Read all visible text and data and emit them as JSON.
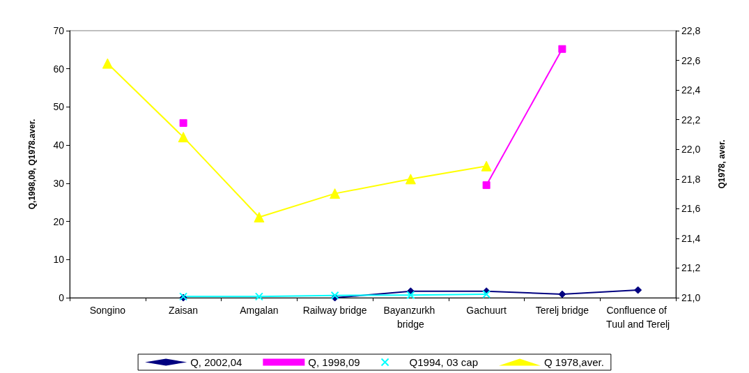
{
  "chart_data": {
    "type": "line",
    "ylabel": "Q,1998,09, Q1978.aver.",
    "y2label": "Q1978, aver.",
    "categories": [
      "Songino",
      "Zaisan",
      "Amgalan",
      "Railway bridge",
      "Bayanzurkh bridge",
      "Gachuurt",
      "Terelj bridge",
      "Confluence of Tuul and Terelj"
    ],
    "series": [
      {
        "name": "Q, 2002,04",
        "color": "#000080",
        "marker": "diamond",
        "values": [
          null,
          0,
          null,
          0,
          1.7,
          1.7,
          0.9,
          2.0
        ]
      },
      {
        "name": "Q, 1998,09",
        "color": "#ff00ff",
        "marker": "square",
        "values": [
          null,
          45.8,
          null,
          null,
          null,
          29.5,
          65.2,
          null
        ]
      },
      {
        "name": "Q1994, 03 cap",
        "color": "#00ffff",
        "marker": "cross",
        "values": [
          null,
          0.3,
          0.3,
          0.6,
          0.7,
          0.9,
          null,
          null
        ]
      },
      {
        "name": "Q 1978,aver.",
        "color": "#ffff00",
        "marker": "triangle",
        "values": [
          61.4,
          42.1,
          21.1,
          27.3,
          31.1,
          34.5,
          null,
          null
        ]
      }
    ],
    "ylim": [
      0,
      70
    ],
    "yticks": [
      0,
      10,
      20,
      30,
      40,
      50,
      60,
      70
    ],
    "y2lim": [
      21.0,
      22.8
    ],
    "y2ticks": [
      {
        "value": 21.0,
        "label": "21,0"
      },
      {
        "value": 21.2,
        "label": "21,2"
      },
      {
        "value": 21.4,
        "label": "21,4"
      },
      {
        "value": 21.6,
        "label": "21,6"
      },
      {
        "value": 21.8,
        "label": "21,8"
      },
      {
        "value": 22.0,
        "label": "22,0"
      },
      {
        "value": 22.2,
        "label": "22,2"
      },
      {
        "value": 22.4,
        "label": "22,4"
      },
      {
        "value": 22.6,
        "label": "22,6"
      },
      {
        "value": 22.8,
        "label": "22,8"
      }
    ],
    "grid": false,
    "legend": "bottom"
  }
}
